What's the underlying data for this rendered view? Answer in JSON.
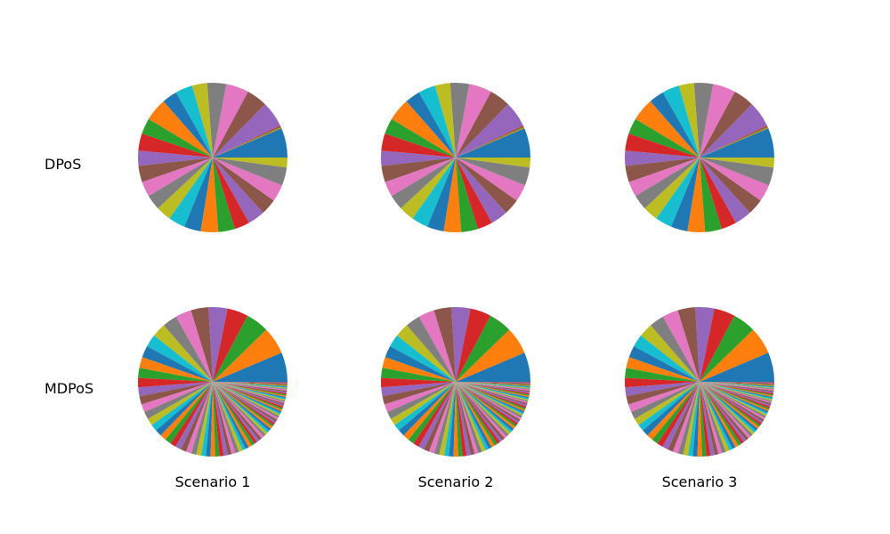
{
  "figure": {
    "row_labels": [
      "DPoS",
      "MDPoS"
    ],
    "col_labels": [
      "Scenario 1",
      "Scenario 2",
      "Scenario 3"
    ]
  },
  "palette": [
    "#1f77b4",
    "#ff7f0e",
    "#2ca02c",
    "#d62728",
    "#9467bd",
    "#8c564b",
    "#e377c2",
    "#7f7f7f",
    "#bcbd22",
    "#17becf"
  ],
  "chart_data": [
    {
      "type": "pie",
      "row": "DPoS",
      "column": "Scenario 1",
      "values": [
        7.8,
        0.2,
        0.3,
        0.3,
        6.8,
        5.5,
        6.0,
        5.0,
        4.0,
        4.5,
        4.0,
        6.0,
        4.2,
        4.5,
        4.0,
        4.3,
        4.0,
        4.0,
        4.0,
        4.4,
        4.4,
        4.6,
        4.4,
        4.0,
        4.5,
        4.2,
        4.5,
        4.8,
        2.6
      ]
    },
    {
      "type": "pie",
      "row": "DPoS",
      "column": "Scenario 2",
      "values": [
        7.8,
        0.2,
        0.3,
        0.3,
        6.8,
        5.5,
        6.0,
        5.0,
        4.0,
        4.5,
        4.0,
        6.0,
        4.2,
        4.5,
        4.0,
        4.3,
        4.0,
        4.0,
        4.0,
        4.4,
        4.4,
        4.6,
        4.4,
        4.0,
        4.5,
        4.2,
        4.5,
        4.8,
        2.6
      ]
    },
    {
      "type": "pie",
      "row": "DPoS",
      "column": "Scenario 3",
      "values": [
        7.8,
        0.2,
        0.3,
        0.3,
        6.8,
        5.5,
        6.0,
        5.0,
        4.0,
        4.5,
        4.0,
        6.0,
        4.2,
        4.5,
        4.0,
        4.3,
        4.0,
        4.0,
        4.0,
        4.4,
        4.4,
        4.6,
        4.4,
        4.0,
        4.5,
        4.2,
        4.5,
        4.8,
        2.6
      ]
    },
    {
      "type": "pie",
      "row": "MDPoS",
      "column": "Scenario 1",
      "values": [
        7.0,
        6.5,
        5.5,
        5.0,
        4.5,
        4.2,
        3.8,
        3.5,
        3.3,
        3.0,
        2.8,
        2.6,
        2.4,
        2.2,
        2.1,
        2.0,
        1.9,
        1.8,
        1.7,
        1.6,
        1.6,
        1.5,
        1.5,
        1.4,
        1.4,
        1.3,
        1.3,
        1.2,
        1.2,
        1.1,
        1.1,
        1.1,
        1.0,
        1.0,
        1.0,
        0.9,
        0.9,
        0.9,
        0.9,
        0.8,
        0.8,
        0.8,
        0.8,
        0.7,
        0.7,
        0.7,
        0.7,
        0.6,
        0.6,
        0.6,
        0.6,
        0.6,
        0.5,
        0.5,
        0.5,
        0.5,
        0.5,
        0.5,
        0.4,
        0.4,
        0.4,
        0.4,
        0.4,
        0.4,
        0.4,
        0.4,
        0.3,
        0.3,
        0.3,
        0.3,
        0.3,
        0.3,
        0.3,
        0.3,
        0.3,
        0.3,
        0.3,
        0.2,
        0.2,
        0.2,
        0.2,
        0.2,
        0.2,
        0.2,
        0.2,
        0.2
      ]
    },
    {
      "type": "pie",
      "row": "MDPoS",
      "column": "Scenario 2",
      "values": [
        7.0,
        6.5,
        5.5,
        5.0,
        4.5,
        4.2,
        3.8,
        3.5,
        3.3,
        3.0,
        2.8,
        2.6,
        2.4,
        2.2,
        2.1,
        2.0,
        1.9,
        1.8,
        1.7,
        1.6,
        1.6,
        1.5,
        1.5,
        1.4,
        1.4,
        1.3,
        1.3,
        1.2,
        1.2,
        1.1,
        1.1,
        1.1,
        1.0,
        1.0,
        1.0,
        0.9,
        0.9,
        0.9,
        0.9,
        0.8,
        0.8,
        0.8,
        0.8,
        0.7,
        0.7,
        0.7,
        0.7,
        0.6,
        0.6,
        0.6,
        0.6,
        0.6,
        0.5,
        0.5,
        0.5,
        0.5,
        0.5,
        0.5,
        0.4,
        0.4,
        0.4,
        0.4,
        0.4,
        0.4,
        0.4,
        0.4,
        0.3,
        0.3,
        0.3,
        0.3,
        0.3,
        0.3,
        0.3,
        0.3,
        0.3,
        0.3,
        0.3,
        0.2,
        0.2,
        0.2,
        0.2,
        0.2,
        0.2,
        0.2,
        0.2,
        0.2
      ]
    },
    {
      "type": "pie",
      "row": "MDPoS",
      "column": "Scenario 3",
      "values": [
        7.0,
        6.5,
        5.5,
        5.0,
        4.5,
        4.2,
        3.8,
        3.5,
        3.3,
        3.0,
        2.8,
        2.6,
        2.4,
        2.2,
        2.1,
        2.0,
        1.9,
        1.8,
        1.7,
        1.6,
        1.6,
        1.5,
        1.5,
        1.4,
        1.4,
        1.3,
        1.3,
        1.2,
        1.2,
        1.1,
        1.1,
        1.1,
        1.0,
        1.0,
        1.0,
        0.9,
        0.9,
        0.9,
        0.9,
        0.8,
        0.8,
        0.8,
        0.8,
        0.7,
        0.7,
        0.7,
        0.7,
        0.6,
        0.6,
        0.6,
        0.6,
        0.6,
        0.5,
        0.5,
        0.5,
        0.5,
        0.5,
        0.5,
        0.4,
        0.4,
        0.4,
        0.4,
        0.4,
        0.4,
        0.4,
        0.4,
        0.3,
        0.3,
        0.3,
        0.3,
        0.3,
        0.3,
        0.3,
        0.3,
        0.3,
        0.3,
        0.3,
        0.2,
        0.2,
        0.2,
        0.2,
        0.2,
        0.2,
        0.2,
        0.2,
        0.2
      ]
    }
  ]
}
